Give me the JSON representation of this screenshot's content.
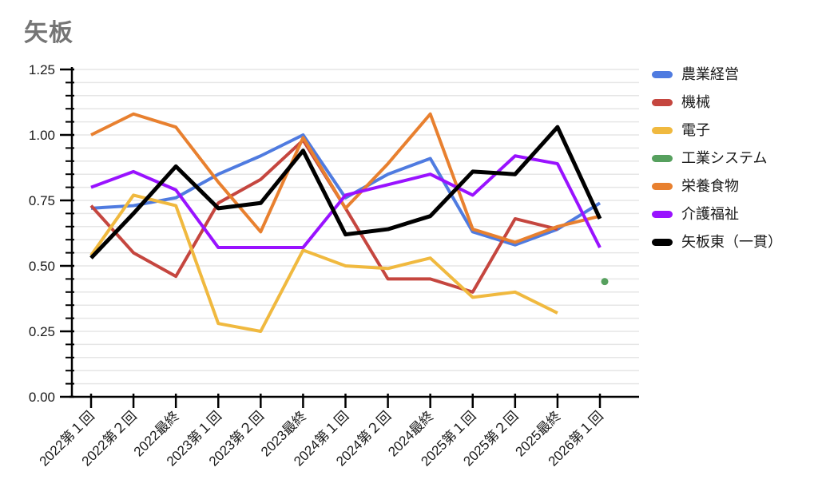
{
  "title": "矢板",
  "colors": {
    "title": "#757575",
    "axis": "#000000",
    "grid": "#e6e6e6",
    "background": "#ffffff"
  },
  "chart_data": {
    "type": "line",
    "title": "矢板",
    "xlabel": "",
    "ylabel": "",
    "ylim": [
      0,
      1.25
    ],
    "yticks": [
      0,
      0.25,
      0.5,
      0.75,
      1.0,
      1.25
    ],
    "ytick_labels": [
      "0.00",
      "0.25",
      "0.50",
      "0.75",
      "1.00",
      "1.25"
    ],
    "minor_grid_step": 0.05,
    "grid": true,
    "legend_position": "right",
    "categories": [
      "2022第１回",
      "2022第２回",
      "2022最終",
      "2023第１回",
      "2023第２回",
      "2023最終",
      "2024第１回",
      "2024第２回",
      "2024最終",
      "2025第１回",
      "2025第２回",
      "2025最終",
      "2026第１回"
    ],
    "series": [
      {
        "name": "農業経営",
        "color": "#4f7be0",
        "values": [
          0.72,
          0.73,
          0.76,
          0.85,
          0.92,
          1.0,
          0.76,
          0.85,
          0.91,
          0.63,
          0.58,
          0.64,
          0.74
        ]
      },
      {
        "name": "機械",
        "color": "#c5463f",
        "values": [
          0.73,
          0.55,
          0.46,
          0.74,
          0.83,
          0.98,
          0.72,
          0.45,
          0.45,
          0.4,
          0.68,
          0.64,
          null
        ]
      },
      {
        "name": "電子",
        "color": "#f0b93f",
        "values": [
          0.54,
          0.77,
          0.73,
          0.28,
          0.25,
          0.56,
          0.5,
          0.49,
          0.53,
          0.38,
          0.4,
          0.32,
          null
        ]
      },
      {
        "name": "工業システム",
        "color": "#56a05e",
        "values": [
          null,
          null,
          null,
          null,
          null,
          null,
          null,
          null,
          null,
          null,
          null,
          null,
          0.44
        ]
      },
      {
        "name": "栄養食物",
        "color": "#e8802f",
        "values": [
          1.0,
          1.08,
          1.03,
          0.82,
          0.63,
          0.99,
          0.72,
          0.89,
          1.08,
          0.64,
          0.59,
          0.65,
          0.69
        ]
      },
      {
        "name": "介護福祉",
        "color": "#9912ff",
        "values": [
          0.8,
          0.86,
          0.79,
          0.57,
          0.57,
          0.57,
          0.77,
          0.81,
          0.85,
          0.77,
          0.92,
          0.89,
          0.57
        ]
      },
      {
        "name": "矢板東（一貫）",
        "color": "#000000",
        "values": [
          0.53,
          0.7,
          0.88,
          0.72,
          0.74,
          0.94,
          0.62,
          0.64,
          0.69,
          0.86,
          0.85,
          1.03,
          0.68
        ]
      }
    ]
  }
}
